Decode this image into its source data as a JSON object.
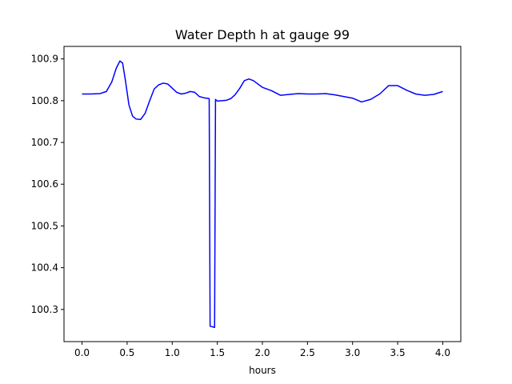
{
  "chart_data": {
    "type": "line",
    "title": "Water Depth h at gauge 99",
    "xlabel": "hours",
    "ylabel": "",
    "xlim": [
      -0.2,
      4.2
    ],
    "ylim": [
      100.223,
      100.93
    ],
    "xticks": [
      0.0,
      0.5,
      1.0,
      1.5,
      2.0,
      2.5,
      3.0,
      3.5,
      4.0
    ],
    "xtick_labels": [
      "0.0",
      "0.5",
      "1.0",
      "1.5",
      "2.0",
      "2.5",
      "3.0",
      "3.5",
      "4.0"
    ],
    "yticks": [
      100.3,
      100.4,
      100.5,
      100.6,
      100.7,
      100.8,
      100.9
    ],
    "ytick_labels": [
      "100.3",
      "100.4",
      "100.5",
      "100.6",
      "100.7",
      "100.8",
      "100.9"
    ],
    "grid": false,
    "series": [
      {
        "color": "#0000ff",
        "x": [
          0.0,
          0.1,
          0.2,
          0.27,
          0.33,
          0.38,
          0.42,
          0.45,
          0.48,
          0.52,
          0.56,
          0.6,
          0.65,
          0.7,
          0.75,
          0.8,
          0.85,
          0.9,
          0.95,
          1.0,
          1.05,
          1.1,
          1.15,
          1.2,
          1.25,
          1.3,
          1.35,
          1.41,
          1.42,
          1.47,
          1.48,
          1.5,
          1.6,
          1.65,
          1.7,
          1.75,
          1.8,
          1.85,
          1.9,
          2.0,
          2.1,
          2.2,
          2.3,
          2.4,
          2.5,
          2.6,
          2.7,
          2.8,
          2.9,
          3.0,
          3.1,
          3.2,
          3.3,
          3.4,
          3.5,
          3.6,
          3.7,
          3.8,
          3.9,
          4.0
        ],
        "y": [
          100.816,
          100.816,
          100.817,
          100.822,
          100.845,
          100.878,
          100.895,
          100.89,
          100.85,
          100.79,
          100.763,
          100.756,
          100.755,
          100.77,
          100.8,
          100.828,
          100.838,
          100.842,
          100.84,
          100.83,
          100.82,
          100.816,
          100.818,
          100.822,
          100.82,
          100.81,
          100.807,
          100.805,
          100.26,
          100.257,
          100.803,
          100.799,
          100.801,
          100.805,
          100.815,
          100.83,
          100.848,
          100.852,
          100.848,
          100.832,
          100.824,
          100.813,
          100.815,
          100.817,
          100.816,
          100.816,
          100.817,
          100.814,
          100.81,
          100.806,
          100.797,
          100.803,
          100.816,
          100.836,
          100.836,
          100.825,
          100.816,
          100.813,
          100.815,
          100.822
        ]
      }
    ]
  }
}
